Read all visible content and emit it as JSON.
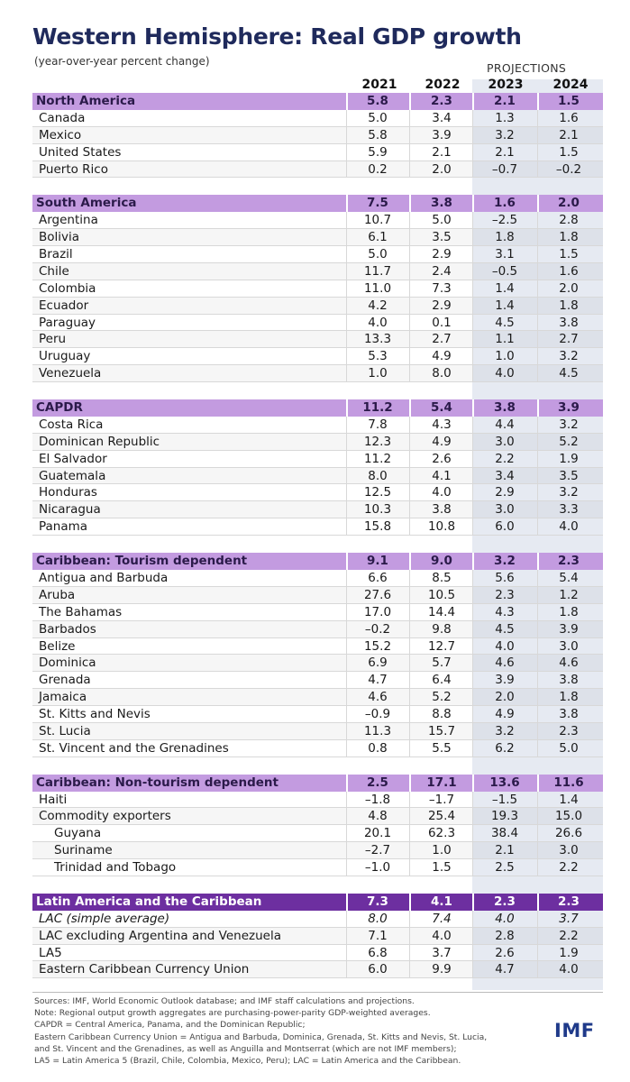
{
  "title": "Western Hemisphere: Real GDP growth",
  "subtitle": "(year-over-year percent change)",
  "projections_label": "PROJECTIONS",
  "colors": {
    "group_header": "#c39be0",
    "group_header_dark": "#6d2fa0",
    "projection_shade": "#e6eaf2",
    "title": "#1f2a5c",
    "logo": "#1f3a8a"
  },
  "chart_data": {
    "type": "table",
    "columns": [
      "2021",
      "2022",
      "2023",
      "2024"
    ],
    "projection_columns": [
      "2023",
      "2024"
    ],
    "groups": [
      {
        "name": "North America",
        "values": [
          "5.8",
          "2.3",
          "2.1",
          "1.5"
        ],
        "rows": [
          {
            "name": "Canada",
            "values": [
              "5.0",
              "3.4",
              "1.3",
              "1.6"
            ]
          },
          {
            "name": "Mexico",
            "values": [
              "5.8",
              "3.9",
              "3.2",
              "2.1"
            ]
          },
          {
            "name": "United States",
            "values": [
              "5.9",
              "2.1",
              "2.1",
              "1.5"
            ]
          },
          {
            "name": "Puerto Rico",
            "values": [
              "0.2",
              "2.0",
              "–0.7",
              "–0.2"
            ]
          }
        ]
      },
      {
        "name": "South America",
        "values": [
          "7.5",
          "3.8",
          "1.6",
          "2.0"
        ],
        "rows": [
          {
            "name": "Argentina",
            "values": [
              "10.7",
              "5.0",
              "–2.5",
              "2.8"
            ]
          },
          {
            "name": "Bolivia",
            "values": [
              "6.1",
              "3.5",
              "1.8",
              "1.8"
            ]
          },
          {
            "name": "Brazil",
            "values": [
              "5.0",
              "2.9",
              "3.1",
              "1.5"
            ]
          },
          {
            "name": "Chile",
            "values": [
              "11.7",
              "2.4",
              "–0.5",
              "1.6"
            ]
          },
          {
            "name": "Colombia",
            "values": [
              "11.0",
              "7.3",
              "1.4",
              "2.0"
            ]
          },
          {
            "name": "Ecuador",
            "values": [
              "4.2",
              "2.9",
              "1.4",
              "1.8"
            ]
          },
          {
            "name": "Paraguay",
            "values": [
              "4.0",
              "0.1",
              "4.5",
              "3.8"
            ]
          },
          {
            "name": "Peru",
            "values": [
              "13.3",
              "2.7",
              "1.1",
              "2.7"
            ]
          },
          {
            "name": "Uruguay",
            "values": [
              "5.3",
              "4.9",
              "1.0",
              "3.2"
            ]
          },
          {
            "name": "Venezuela",
            "values": [
              "1.0",
              "8.0",
              "4.0",
              "4.5"
            ]
          }
        ]
      },
      {
        "name": "CAPDR",
        "values": [
          "11.2",
          "5.4",
          "3.8",
          "3.9"
        ],
        "rows": [
          {
            "name": "Costa Rica",
            "values": [
              "7.8",
              "4.3",
              "4.4",
              "3.2"
            ]
          },
          {
            "name": "Dominican Republic",
            "values": [
              "12.3",
              "4.9",
              "3.0",
              "5.2"
            ]
          },
          {
            "name": "El Salvador",
            "values": [
              "11.2",
              "2.6",
              "2.2",
              "1.9"
            ]
          },
          {
            "name": "Guatemala",
            "values": [
              "8.0",
              "4.1",
              "3.4",
              "3.5"
            ]
          },
          {
            "name": "Honduras",
            "values": [
              "12.5",
              "4.0",
              "2.9",
              "3.2"
            ]
          },
          {
            "name": "Nicaragua",
            "values": [
              "10.3",
              "3.8",
              "3.0",
              "3.3"
            ]
          },
          {
            "name": "Panama",
            "values": [
              "15.8",
              "10.8",
              "6.0",
              "4.0"
            ]
          }
        ]
      },
      {
        "name": "Caribbean: Tourism dependent",
        "values": [
          "9.1",
          "9.0",
          "3.2",
          "2.3"
        ],
        "rows": [
          {
            "name": "Antigua and Barbuda",
            "values": [
              "6.6",
              "8.5",
              "5.6",
              "5.4"
            ]
          },
          {
            "name": "Aruba",
            "values": [
              "27.6",
              "10.5",
              "2.3",
              "1.2"
            ]
          },
          {
            "name": "The Bahamas",
            "values": [
              "17.0",
              "14.4",
              "4.3",
              "1.8"
            ]
          },
          {
            "name": "Barbados",
            "values": [
              "–0.2",
              "9.8",
              "4.5",
              "3.9"
            ]
          },
          {
            "name": "Belize",
            "values": [
              "15.2",
              "12.7",
              "4.0",
              "3.0"
            ]
          },
          {
            "name": "Dominica",
            "values": [
              "6.9",
              "5.7",
              "4.6",
              "4.6"
            ]
          },
          {
            "name": "Grenada",
            "values": [
              "4.7",
              "6.4",
              "3.9",
              "3.8"
            ]
          },
          {
            "name": "Jamaica",
            "values": [
              "4.6",
              "5.2",
              "2.0",
              "1.8"
            ]
          },
          {
            "name": "St. Kitts and Nevis",
            "values": [
              "–0.9",
              "8.8",
              "4.9",
              "3.8"
            ]
          },
          {
            "name": "St. Lucia",
            "values": [
              "11.3",
              "15.7",
              "3.2",
              "2.3"
            ]
          },
          {
            "name": "St. Vincent and the Grenadines",
            "values": [
              "0.8",
              "5.5",
              "6.2",
              "5.0"
            ]
          }
        ]
      },
      {
        "name": "Caribbean: Non-tourism dependent",
        "values": [
          "2.5",
          "17.1",
          "13.6",
          "11.6"
        ],
        "rows": [
          {
            "name": "Haiti",
            "values": [
              "–1.8",
              "–1.7",
              "–1.5",
              "1.4"
            ]
          },
          {
            "name": "Commodity exporters",
            "values": [
              "4.8",
              "25.4",
              "19.3",
              "15.0"
            ]
          },
          {
            "name": "Guyana",
            "values": [
              "20.1",
              "62.3",
              "38.4",
              "26.6"
            ],
            "indent": true
          },
          {
            "name": "Suriname",
            "values": [
              "–2.7",
              "1.0",
              "2.1",
              "3.0"
            ],
            "indent": true
          },
          {
            "name": "Trinidad and Tobago",
            "values": [
              "–1.0",
              "1.5",
              "2.5",
              "2.2"
            ],
            "indent": true
          }
        ]
      },
      {
        "name": "Latin America and the Caribbean",
        "values": [
          "7.3",
          "4.1",
          "2.3",
          "2.3"
        ],
        "dark": true,
        "rows": [
          {
            "name": "LAC (simple average)",
            "values": [
              "8.0",
              "7.4",
              "4.0",
              "3.7"
            ],
            "italic": true
          },
          {
            "name": "LAC excluding Argentina and Venezuela",
            "values": [
              "7.1",
              "4.0",
              "2.8",
              "2.2"
            ]
          },
          {
            "name": "LA5",
            "values": [
              "6.8",
              "3.7",
              "2.6",
              "1.9"
            ]
          },
          {
            "name": "Eastern Caribbean Currency Union",
            "values": [
              "6.0",
              "9.9",
              "4.7",
              "4.0"
            ]
          }
        ]
      }
    ]
  },
  "notes": [
    "Sources: IMF, World Economic Outlook database; and IMF staff calculations and projections.",
    "Note: Regional output growth aggregates are purchasing-power-parity GDP-weighted averages.",
    "CAPDR = Central America, Panama, and the Dominican Republic;",
    "Eastern Caribbean Currency Union = Antigua and Barbuda, Dominica, Grenada, St. Kitts and Nevis, St. Lucia,",
    "and St. Vincent and the Grenadines, as well as Anguilla and Montserrat (which are not IMF members);",
    "LA5 = Latin America 5 (Brazil, Chile, Colombia, Mexico, Peru); LAC = Latin America and the Caribbean."
  ],
  "logo_text": "IMF"
}
